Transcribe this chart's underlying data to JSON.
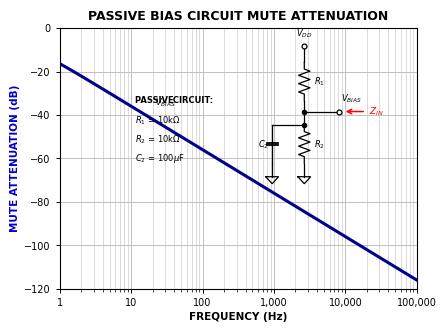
{
  "title": "PASSIVE BIAS CIRCUIT MUTE ATTENUATION",
  "xlabel": "FREQUENCY (Hz)",
  "ylabel": "MUTE ATTENUATION (dB)",
  "xlim": [
    1,
    100000
  ],
  "ylim": [
    -120,
    0
  ],
  "yticks": [
    0,
    -20,
    -40,
    -60,
    -80,
    -100,
    -120
  ],
  "xtick_labels": [
    "1",
    "10",
    "100",
    "1,000",
    "10,000",
    "100,000"
  ],
  "xtick_vals": [
    1,
    10,
    100,
    1000,
    10000,
    100000
  ],
  "line_color": "#00008B",
  "axis_color": "#0000CC",
  "background_color": "#FFFFFF",
  "grid_color": "#C0C0C0",
  "title_fontsize": 9,
  "label_fontsize": 7.5,
  "R1": 10000,
  "R2": 10000,
  "C2": 0.0001
}
